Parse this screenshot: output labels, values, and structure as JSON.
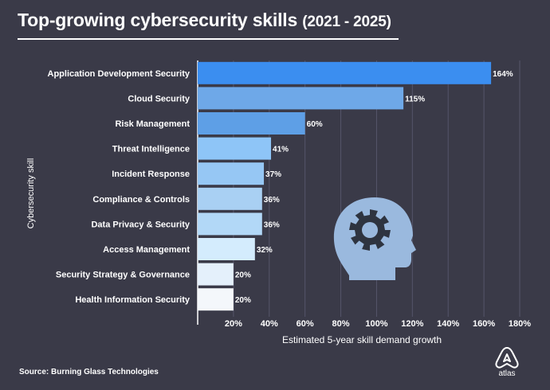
{
  "title": {
    "main": "Top-growing cybersecurity skills",
    "years": "(2021 - 2025)"
  },
  "source": "Source: Burning Glass Technologies",
  "brand": "atlas",
  "chart_data": {
    "type": "bar",
    "orientation": "horizontal",
    "title": "Top-growing cybersecurity skills (2021 - 2025)",
    "xlabel": "Estimated 5-year skill demand growth",
    "ylabel": "Cybersecurity skill",
    "xlim": [
      0,
      180
    ],
    "xticks": [
      20,
      40,
      60,
      80,
      100,
      120,
      140,
      160,
      180
    ],
    "xtick_labels": [
      "20%",
      "40%",
      "60%",
      "80%",
      "100%",
      "120%",
      "140%",
      "160%",
      "180%"
    ],
    "grid": true,
    "categories": [
      "Application Development Security",
      "Cloud Security",
      "Risk Management",
      "Threat Intelligence",
      "Incident Response",
      "Compliance & Controls",
      "Data Privacy & Security",
      "Access Management",
      "Security Strategy & Governance",
      "Health Information Security"
    ],
    "values": [
      164,
      115,
      60,
      41,
      37,
      36,
      36,
      32,
      20,
      20
    ],
    "value_labels": [
      "164%",
      "115%",
      "60%",
      "41%",
      "37%",
      "36%",
      "36%",
      "32%",
      "20%",
      "20%"
    ],
    "colors": [
      "#3b8ef0",
      "#6ea8e8",
      "#5e9fe6",
      "#8ec5f7",
      "#96c7f4",
      "#a9d0f3",
      "#b2d8f7",
      "#d4ecfd",
      "#e4f0fb",
      "#f4f7fb"
    ]
  },
  "colors": {
    "background": "#3a3a48",
    "grid": "#55556a",
    "icon": "#9ab9de"
  }
}
